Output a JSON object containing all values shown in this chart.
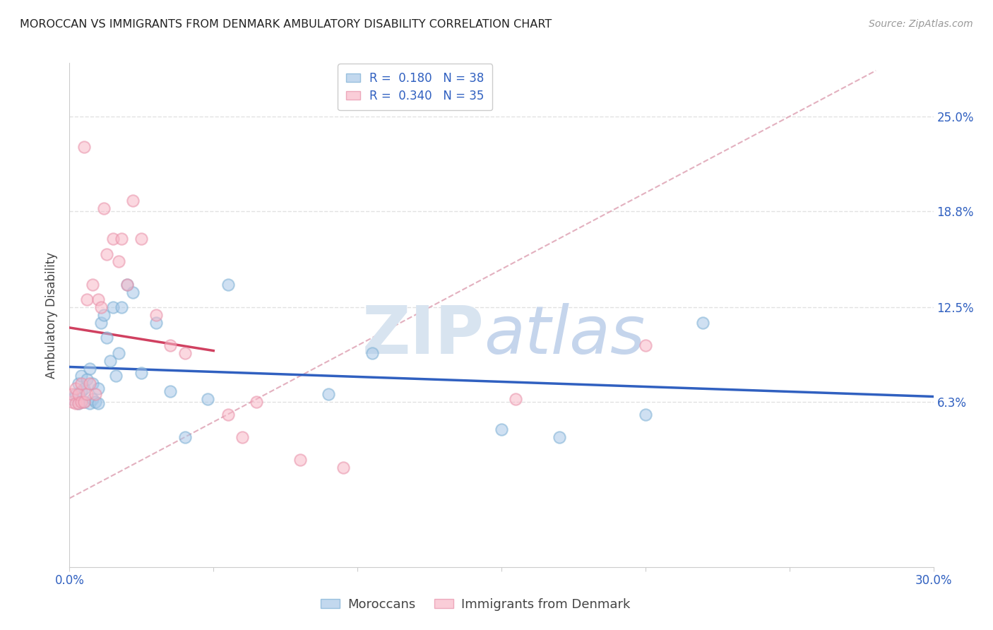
{
  "title": "MOROCCAN VS IMMIGRANTS FROM DENMARK AMBULATORY DISABILITY CORRELATION CHART",
  "source": "Source: ZipAtlas.com",
  "ylabel": "Ambulatory Disability",
  "ytick_vals": [
    0.063,
    0.125,
    0.188,
    0.25
  ],
  "ytick_labels": [
    "6.3%",
    "12.5%",
    "18.8%",
    "25.0%"
  ],
  "xlim": [
    0.0,
    0.3
  ],
  "ylim": [
    -0.045,
    0.285
  ],
  "color_moroccan_fill": "#A8C8E8",
  "color_moroccan_edge": "#7BAFD4",
  "color_denmark_fill": "#F8B8C8",
  "color_denmark_edge": "#E890A8",
  "color_line_moroccan": "#3060C0",
  "color_line_denmark": "#D04060",
  "color_diagonal": "#E0A8B8",
  "moroccan_x": [
    0.001,
    0.002,
    0.003,
    0.003,
    0.004,
    0.004,
    0.005,
    0.005,
    0.006,
    0.007,
    0.007,
    0.008,
    0.008,
    0.009,
    0.01,
    0.01,
    0.011,
    0.012,
    0.013,
    0.014,
    0.015,
    0.016,
    0.017,
    0.018,
    0.02,
    0.022,
    0.025,
    0.03,
    0.035,
    0.04,
    0.048,
    0.055,
    0.09,
    0.105,
    0.15,
    0.17,
    0.2,
    0.22
  ],
  "moroccan_y": [
    0.065,
    0.068,
    0.062,
    0.075,
    0.07,
    0.08,
    0.063,
    0.072,
    0.078,
    0.062,
    0.085,
    0.065,
    0.075,
    0.063,
    0.062,
    0.072,
    0.115,
    0.12,
    0.105,
    0.09,
    0.125,
    0.08,
    0.095,
    0.125,
    0.14,
    0.135,
    0.082,
    0.115,
    0.07,
    0.04,
    0.065,
    0.14,
    0.068,
    0.095,
    0.045,
    0.04,
    0.055,
    0.115
  ],
  "denmark_x": [
    0.001,
    0.001,
    0.002,
    0.002,
    0.003,
    0.003,
    0.004,
    0.004,
    0.005,
    0.005,
    0.006,
    0.006,
    0.007,
    0.008,
    0.009,
    0.01,
    0.011,
    0.012,
    0.013,
    0.015,
    0.017,
    0.018,
    0.02,
    0.022,
    0.025,
    0.03,
    0.035,
    0.04,
    0.055,
    0.06,
    0.065,
    0.08,
    0.095,
    0.155,
    0.2
  ],
  "denmark_y": [
    0.063,
    0.068,
    0.062,
    0.072,
    0.062,
    0.068,
    0.063,
    0.075,
    0.063,
    0.23,
    0.068,
    0.13,
    0.075,
    0.14,
    0.068,
    0.13,
    0.125,
    0.19,
    0.16,
    0.17,
    0.155,
    0.17,
    0.14,
    0.195,
    0.17,
    0.12,
    0.1,
    0.095,
    0.055,
    0.04,
    0.063,
    0.025,
    0.02,
    0.065,
    0.1
  ],
  "watermark_zip_color": "#D8E4F0",
  "watermark_atlas_color": "#C5D5EC",
  "background_color": "#FFFFFF",
  "grid_color": "#DEDEDE"
}
